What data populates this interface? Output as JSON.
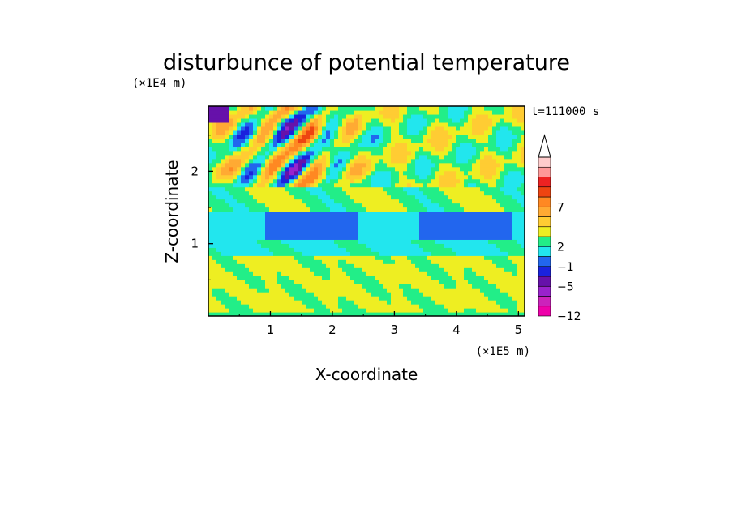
{
  "chart_data": {
    "type": "heatmap",
    "title": "disturbunce of potential temperature",
    "xlabel": "X-coordinate",
    "ylabel": "Z-coordinate",
    "x_scale_label": "(×1E5 m)",
    "y_scale_label": "(×1E4 m)",
    "time_label": "t=111000 s",
    "xlim": [
      0,
      5.1
    ],
    "ylim": [
      0,
      2.9
    ],
    "x_ticks": [
      "1",
      "2",
      "3",
      "4",
      "5"
    ],
    "x_tick_values": [
      1,
      2,
      3,
      4,
      5
    ],
    "y_ticks": [
      "1",
      "2"
    ],
    "y_tick_values": [
      1,
      2
    ],
    "colorbar": {
      "labels": [
        "7",
        "2",
        "−1",
        "−5",
        "−12"
      ],
      "label_levels": [
        11,
        7,
        5,
        3,
        0
      ],
      "colors_bottom_to_top": [
        "#ee00aa",
        "#cc22bb",
        "#9922cc",
        "#6611aa",
        "#1a22dd",
        "#2266ee",
        "#22e6ee",
        "#22ee88",
        "#eeee22",
        "#ffcc33",
        "#ffaa33",
        "#ff8822",
        "#ee4411",
        "#ee2222",
        "#ff9999",
        "#ffcccc"
      ],
      "extend_top": true
    },
    "field_description": "disturbance of potential temperature in X-Z plane: near-neutral yellow/green lower layer, cyan band around z≈1.3, warm orange/red and cold blue wave patterns in upper levels",
    "colors": {
      "cold_strong": "#1a22dd",
      "cold_weak": "#22e6ee",
      "neutral": "#22ee88",
      "warm_weak": "#eeee22",
      "warm": "#ffaa33",
      "warm_strong": "#ee2222"
    }
  }
}
